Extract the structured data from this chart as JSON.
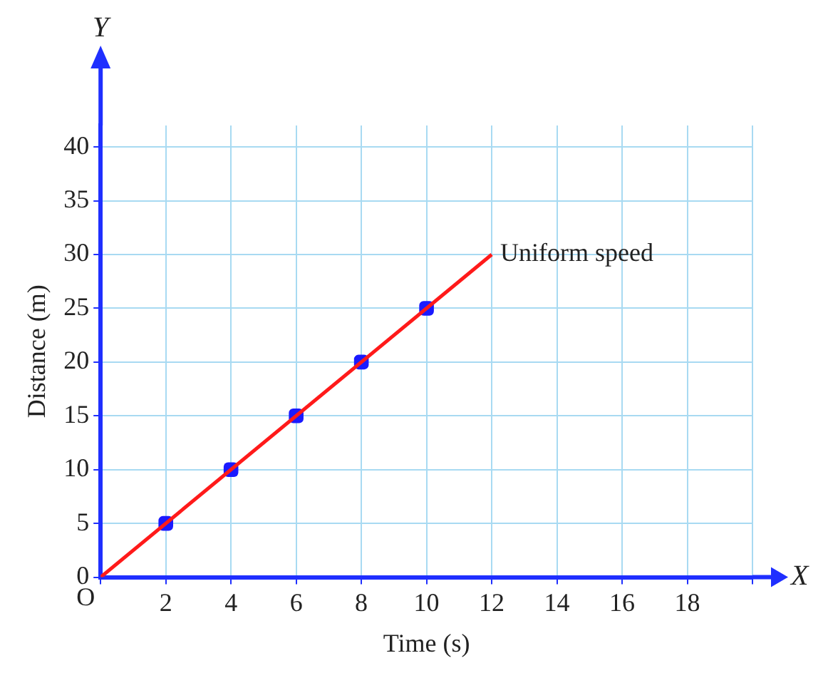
{
  "chart_data": {
    "type": "line",
    "xlabel": "Time (s)",
    "ylabel": "Distance (m)",
    "xlim": [
      0,
      20
    ],
    "ylim": [
      0,
      42
    ],
    "xticks": [
      {
        "value": 0,
        "label": null
      },
      2,
      4,
      6,
      8,
      10,
      12,
      14,
      16,
      18,
      {
        "value": 20,
        "label": null
      }
    ],
    "yticks": [
      0,
      5,
      10,
      15,
      20,
      25,
      30,
      35,
      40
    ],
    "grid": true,
    "legend": false,
    "series": [
      {
        "type": "line",
        "x": [
          0,
          12
        ],
        "values": [
          0,
          30
        ],
        "color": "#ff1a1a",
        "marker": "none",
        "line_style": "solid"
      },
      {
        "type": "scatter",
        "x": [
          2,
          4,
          6,
          8,
          10
        ],
        "values": [
          5,
          10,
          15,
          20,
          25
        ],
        "color": "#1a1aff",
        "marker": "square"
      }
    ],
    "annotations": [
      "Y",
      "X",
      "O",
      {
        "text": "Uniform speed",
        "x": 12,
        "y": 30
      }
    ]
  }
}
